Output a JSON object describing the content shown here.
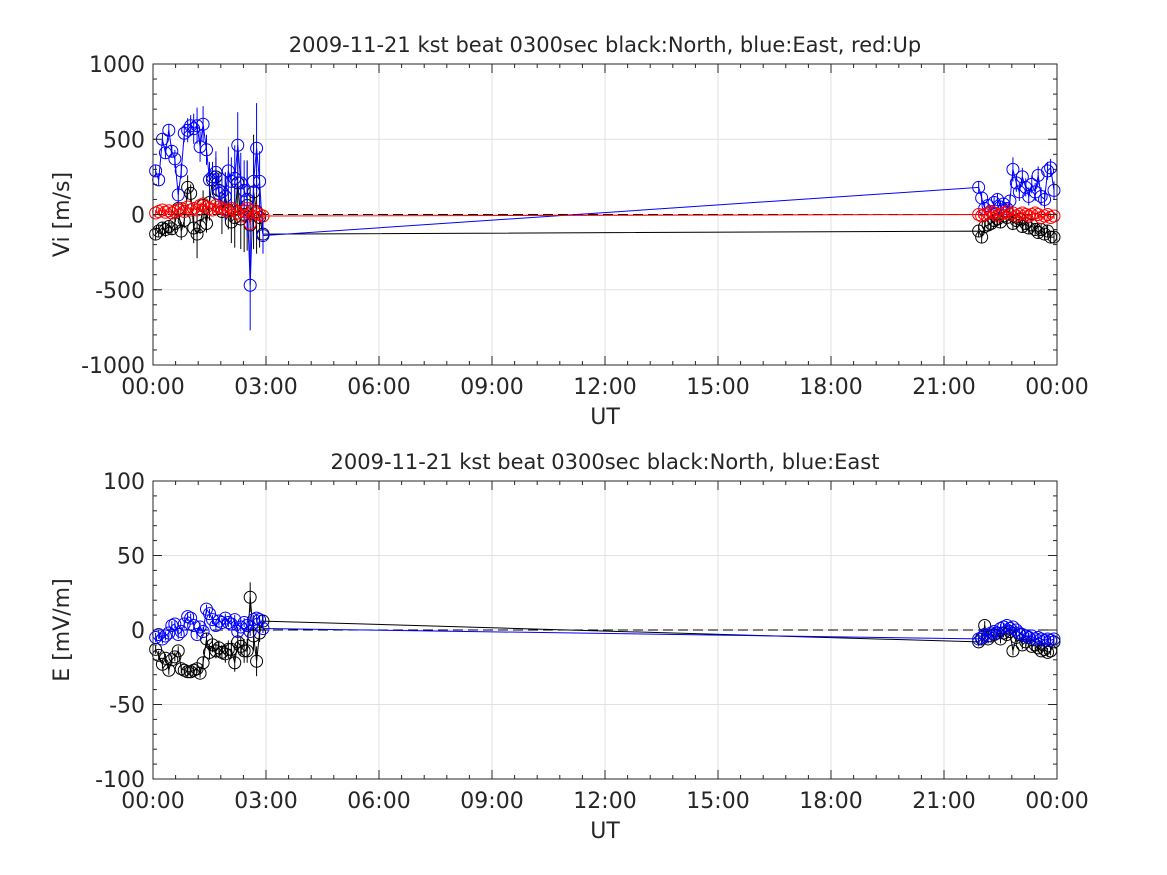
{
  "chart_data": [
    {
      "type": "scatter",
      "title": "2009-11-21 kst beat 0300sec black:North, blue:East, red:Up",
      "xlabel": "UT",
      "ylabel": "Vi [m/s]",
      "xlim": [
        0,
        24
      ],
      "ylim": [
        -1000,
        1000
      ],
      "xticks": [
        0,
        3,
        6,
        9,
        12,
        15,
        18,
        21,
        24
      ],
      "xtick_labels": [
        "00:00",
        "03:00",
        "06:00",
        "09:00",
        "12:00",
        "15:00",
        "18:00",
        "21:00",
        "00:00"
      ],
      "yticks": [
        -1000,
        -500,
        0,
        500,
        1000
      ],
      "ytick_labels": [
        "-1000",
        "-500",
        "0",
        "500",
        "1000"
      ],
      "grid": true,
      "zero_line": "dashed",
      "series": [
        {
          "color": "#000000",
          "x": [
            0.07,
            0.15,
            0.25,
            0.33,
            0.42,
            0.5,
            0.58,
            0.67,
            0.75,
            0.83,
            0.92,
            1.0,
            1.08,
            1.17,
            1.25,
            1.33,
            1.42,
            1.5,
            1.58,
            1.67,
            1.75,
            1.83,
            1.92,
            2.0,
            2.08,
            2.17,
            2.25,
            2.33,
            2.42,
            2.5,
            2.58,
            2.67,
            2.75,
            2.83,
            2.92,
            21.92,
            22.0,
            22.08,
            22.17,
            22.25,
            22.33,
            22.42,
            22.5,
            22.58,
            22.67,
            22.75,
            22.83,
            22.92,
            23.0,
            23.08,
            23.17,
            23.25,
            23.33,
            23.42,
            23.5,
            23.58,
            23.67,
            23.75,
            23.83,
            23.92
          ],
          "y": [
            -130,
            -110,
            -90,
            -100,
            -80,
            -95,
            -60,
            40,
            -110,
            -40,
            180,
            140,
            -90,
            -130,
            -80,
            60,
            -60,
            80,
            230,
            250,
            160,
            20,
            120,
            30,
            -50,
            -20,
            210,
            -30,
            0,
            60,
            -70,
            150,
            20,
            -20,
            -130,
            -110,
            -150,
            -80,
            -70,
            -60,
            -40,
            -30,
            -50,
            -10,
            -20,
            0,
            -60,
            -40,
            -30,
            -80,
            -60,
            -90,
            -70,
            -100,
            -120,
            -100,
            -130,
            -110,
            -150,
            -150
          ],
          "err": [
            40,
            40,
            40,
            50,
            40,
            40,
            60,
            50,
            60,
            50,
            80,
            60,
            100,
            160,
            50,
            100,
            60,
            120,
            100,
            130,
            120,
            150,
            160,
            130,
            140,
            200,
            200,
            200,
            250,
            300,
            250,
            380,
            280,
            200,
            100,
            40,
            40,
            40,
            40,
            40,
            40,
            40,
            40,
            40,
            40,
            40,
            40,
            40,
            40,
            40,
            40,
            40,
            40,
            40,
            40,
            40,
            40,
            40,
            40,
            40
          ]
        },
        {
          "color": "#0000ff",
          "x": [
            0.07,
            0.15,
            0.25,
            0.33,
            0.42,
            0.5,
            0.58,
            0.67,
            0.75,
            0.83,
            0.92,
            1.0,
            1.08,
            1.17,
            1.25,
            1.33,
            1.42,
            1.5,
            1.58,
            1.67,
            1.75,
            1.83,
            1.92,
            2.0,
            2.08,
            2.17,
            2.25,
            2.33,
            2.42,
            2.5,
            2.58,
            2.67,
            2.75,
            2.83,
            2.92,
            21.92,
            22.0,
            22.08,
            22.17,
            22.25,
            22.33,
            22.42,
            22.5,
            22.58,
            22.67,
            22.75,
            22.83,
            22.92,
            23.0,
            23.08,
            23.17,
            23.25,
            23.33,
            23.42,
            23.5,
            23.58,
            23.67,
            23.75,
            23.83,
            23.92
          ],
          "y": [
            290,
            230,
            500,
            410,
            560,
            420,
            370,
            130,
            290,
            540,
            560,
            590,
            570,
            590,
            450,
            600,
            430,
            230,
            250,
            280,
            140,
            150,
            120,
            290,
            220,
            240,
            460,
            210,
            160,
            100,
            -470,
            220,
            440,
            220,
            -140,
            180,
            110,
            40,
            60,
            20,
            80,
            100,
            50,
            70,
            40,
            90,
            300,
            210,
            150,
            250,
            180,
            120,
            200,
            150,
            260,
            120,
            100,
            290,
            310,
            160
          ],
          "err": [
            40,
            40,
            40,
            40,
            40,
            40,
            60,
            60,
            50,
            60,
            80,
            70,
            100,
            120,
            100,
            120,
            100,
            120,
            100,
            140,
            120,
            140,
            160,
            160,
            160,
            220,
            220,
            200,
            200,
            250,
            300,
            250,
            300,
            200,
            120,
            40,
            40,
            40,
            40,
            40,
            40,
            40,
            40,
            40,
            40,
            40,
            80,
            60,
            60,
            60,
            60,
            60,
            60,
            60,
            60,
            60,
            60,
            60,
            60,
            60
          ]
        },
        {
          "color": "#ff0000",
          "x": [
            0.07,
            0.15,
            0.25,
            0.33,
            0.42,
            0.5,
            0.58,
            0.67,
            0.75,
            0.83,
            0.92,
            1.0,
            1.08,
            1.17,
            1.25,
            1.33,
            1.42,
            1.5,
            1.58,
            1.67,
            1.75,
            1.83,
            1.92,
            2.0,
            2.08,
            2.17,
            2.25,
            2.33,
            2.42,
            2.5,
            2.58,
            2.67,
            2.75,
            2.83,
            2.92,
            21.92,
            22.0,
            22.08,
            22.17,
            22.25,
            22.33,
            22.42,
            22.5,
            22.58,
            22.67,
            22.75,
            22.83,
            22.92,
            23.0,
            23.08,
            23.17,
            23.25,
            23.33,
            23.42,
            23.5,
            23.58,
            23.67,
            23.75,
            23.83,
            23.92
          ],
          "y": [
            10,
            20,
            30,
            15,
            25,
            10,
            20,
            30,
            40,
            20,
            50,
            30,
            40,
            30,
            60,
            70,
            50,
            40,
            30,
            60,
            50,
            40,
            30,
            20,
            40,
            30,
            10,
            -10,
            20,
            40,
            -60,
            30,
            10,
            0,
            -10,
            0,
            -10,
            0,
            10,
            20,
            10,
            -10,
            0,
            10,
            20,
            0,
            10,
            -10,
            0,
            10,
            0,
            -10,
            0,
            10,
            0,
            -20,
            -10,
            0,
            -20,
            -10
          ],
          "err": [
            20,
            20,
            20,
            20,
            20,
            20,
            20,
            20,
            20,
            20,
            20,
            20,
            20,
            20,
            20,
            20,
            20,
            20,
            20,
            20,
            20,
            20,
            20,
            20,
            20,
            20,
            20,
            20,
            20,
            20,
            20,
            20,
            20,
            20,
            20,
            20,
            20,
            20,
            20,
            20,
            20,
            20,
            20,
            20,
            20,
            20,
            20,
            20,
            20,
            20,
            20,
            20,
            20,
            20,
            20,
            20,
            20,
            20,
            20,
            20
          ]
        }
      ]
    },
    {
      "type": "scatter",
      "title": "2009-11-21 kst beat 0300sec black:North, blue:East",
      "xlabel": "UT",
      "ylabel": "E [mV/m]",
      "xlim": [
        0,
        24
      ],
      "ylim": [
        -100,
        100
      ],
      "xticks": [
        0,
        3,
        6,
        9,
        12,
        15,
        18,
        21,
        24
      ],
      "xtick_labels": [
        "00:00",
        "03:00",
        "06:00",
        "09:00",
        "12:00",
        "15:00",
        "18:00",
        "21:00",
        "00:00"
      ],
      "yticks": [
        -100,
        -50,
        0,
        50,
        100
      ],
      "ytick_labels": [
        "-100",
        "-50",
        "0",
        "50",
        "100"
      ],
      "grid": true,
      "zero_line": "dashed",
      "series": [
        {
          "color": "#000000",
          "x": [
            0.07,
            0.15,
            0.25,
            0.33,
            0.42,
            0.5,
            0.58,
            0.67,
            0.75,
            0.83,
            0.92,
            1.0,
            1.08,
            1.17,
            1.25,
            1.33,
            1.42,
            1.5,
            1.58,
            1.67,
            1.75,
            1.83,
            1.92,
            2.0,
            2.08,
            2.17,
            2.25,
            2.33,
            2.42,
            2.5,
            2.58,
            2.67,
            2.75,
            2.83,
            2.92,
            21.92,
            22.0,
            22.08,
            22.17,
            22.25,
            22.33,
            22.42,
            22.5,
            22.58,
            22.67,
            22.75,
            22.83,
            22.92,
            23.0,
            23.08,
            23.17,
            23.25,
            23.33,
            23.42,
            23.5,
            23.58,
            23.67,
            23.75,
            23.83,
            23.92
          ],
          "y": [
            -13,
            -17,
            -23,
            -19,
            -27,
            -20,
            -18,
            -14,
            -26,
            -27,
            -28,
            -28,
            -27,
            -26,
            -29,
            -22,
            -6,
            -15,
            -10,
            -14,
            -12,
            -15,
            -16,
            -13,
            -13,
            -22,
            -8,
            -11,
            -14,
            -14,
            22,
            -4,
            -21,
            -2,
            6,
            -8,
            -6,
            3,
            -6,
            -4,
            -3,
            -2,
            -6,
            -2,
            -3,
            -1,
            -14,
            -5,
            -3,
            -10,
            -8,
            -5,
            -11,
            -10,
            -12,
            -14,
            -13,
            -15,
            -14,
            -8
          ],
          "err": [
            3,
            3,
            3,
            3,
            3,
            3,
            3,
            3,
            3,
            3,
            3,
            3,
            3,
            3,
            3,
            4,
            4,
            5,
            5,
            5,
            5,
            5,
            6,
            6,
            6,
            6,
            6,
            6,
            8,
            8,
            10,
            10,
            10,
            6,
            4,
            3,
            3,
            3,
            3,
            3,
            3,
            3,
            3,
            3,
            3,
            3,
            3,
            3,
            3,
            3,
            3,
            3,
            3,
            3,
            3,
            3,
            3,
            3,
            3,
            3
          ]
        },
        {
          "color": "#0000ff",
          "x": [
            0.07,
            0.15,
            0.25,
            0.33,
            0.42,
            0.5,
            0.58,
            0.67,
            0.75,
            0.83,
            0.92,
            1.0,
            1.08,
            1.17,
            1.25,
            1.33,
            1.42,
            1.5,
            1.58,
            1.67,
            1.75,
            1.83,
            1.92,
            2.0,
            2.08,
            2.17,
            2.25,
            2.33,
            2.42,
            2.5,
            2.58,
            2.67,
            2.75,
            2.83,
            2.92,
            21.92,
            22.0,
            22.08,
            22.17,
            22.25,
            22.33,
            22.42,
            22.5,
            22.58,
            22.67,
            22.75,
            22.83,
            22.92,
            23.0,
            23.08,
            23.17,
            23.25,
            23.33,
            23.42,
            23.5,
            23.58,
            23.67,
            23.75,
            23.83,
            23.92
          ],
          "y": [
            -5,
            -3,
            -6,
            -4,
            -2,
            3,
            4,
            -3,
            -1,
            4,
            9,
            8,
            3,
            -3,
            2,
            -1,
            14,
            11,
            7,
            3,
            6,
            5,
            8,
            5,
            4,
            7,
            -1,
            2,
            5,
            3,
            -1,
            7,
            8,
            7,
            1,
            -6,
            -5,
            -3,
            -4,
            -2,
            -1,
            -2,
            1,
            2,
            3,
            1,
            2,
            0,
            -2,
            -3,
            -4,
            -5,
            -4,
            -6,
            -5,
            -6,
            -7,
            -6,
            -7,
            -6
          ],
          "err": [
            3,
            3,
            3,
            3,
            3,
            3,
            3,
            3,
            3,
            3,
            3,
            3,
            3,
            3,
            3,
            3,
            3,
            3,
            3,
            3,
            3,
            3,
            3,
            3,
            3,
            3,
            3,
            3,
            3,
            3,
            3,
            3,
            3,
            3,
            3,
            3,
            3,
            3,
            3,
            3,
            3,
            3,
            3,
            3,
            3,
            3,
            3,
            3,
            3,
            3,
            3,
            3,
            3,
            3,
            3,
            3,
            3,
            3,
            3,
            3
          ]
        }
      ]
    }
  ]
}
